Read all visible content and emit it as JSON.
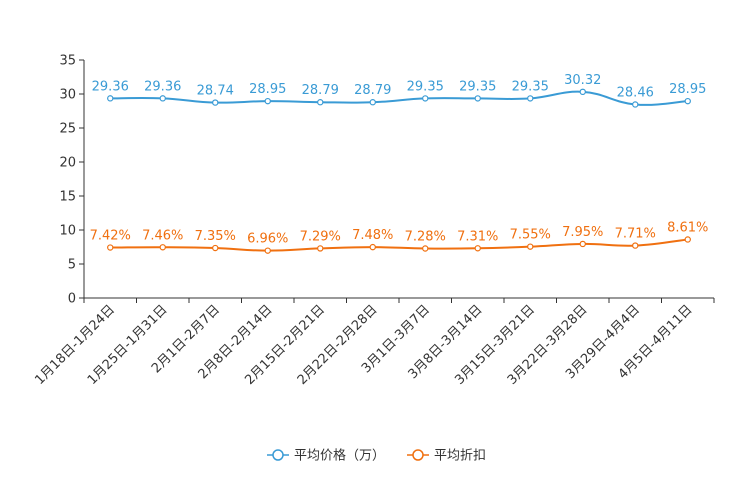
{
  "chart_data": {
    "type": "line",
    "title": "",
    "xlabel": "",
    "ylabel": "",
    "ylim": [
      0,
      35
    ],
    "yticks": [
      0,
      5,
      10,
      15,
      20,
      25,
      30,
      35
    ],
    "grid": false,
    "legend_position": "bottom-center",
    "categories": [
      "1月18日-1月24日",
      "1月25日-1月31日",
      "2月1日-2月7日",
      "2月8日-2月14日",
      "2月15日-2月21日",
      "2月22日-2月28日",
      "3月1日-3月7日",
      "3月8日-3月14日",
      "3月15日-3月21日",
      "3月22日-3月28日",
      "3月29日-4月4日",
      "4月5日-4月11日"
    ],
    "series": [
      {
        "name": "平均价格（万）",
        "color": "#3a9bd5",
        "values": [
          29.36,
          29.36,
          28.74,
          28.95,
          28.79,
          28.79,
          29.35,
          29.35,
          29.35,
          30.32,
          28.46,
          28.95
        ],
        "labels": [
          "29.36",
          "29.36",
          "28.74",
          "28.95",
          "28.79",
          "28.79",
          "29.35",
          "29.35",
          "29.35",
          "30.32",
          "28.46",
          "28.95"
        ]
      },
      {
        "name": "平均折扣",
        "color": "#f07010",
        "values": [
          7.42,
          7.46,
          7.35,
          6.96,
          7.29,
          7.48,
          7.28,
          7.31,
          7.55,
          7.95,
          7.71,
          8.61
        ],
        "labels": [
          "7.42%",
          "7.46%",
          "7.35%",
          "6.96%",
          "7.29%",
          "7.48%",
          "7.28%",
          "7.31%",
          "7.55%",
          "7.95%",
          "7.71%",
          "8.61%"
        ]
      }
    ]
  }
}
